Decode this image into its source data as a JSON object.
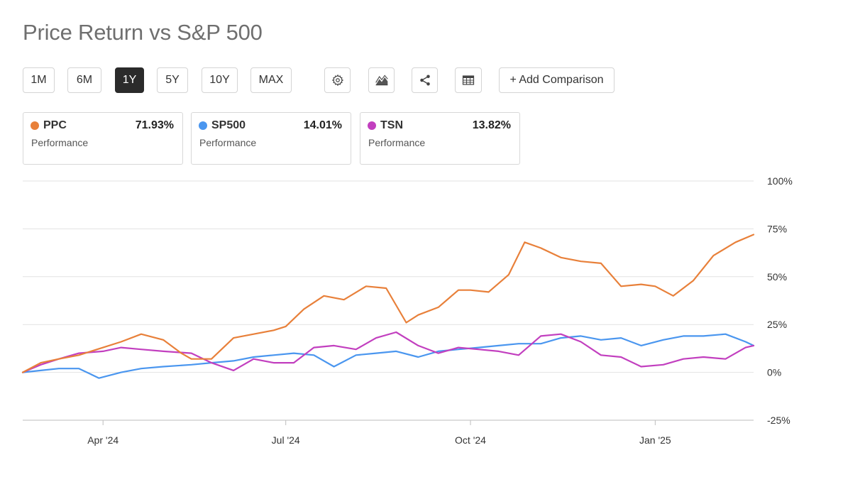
{
  "title": "Price Return vs S&P 500",
  "ranges": [
    "1M",
    "6M",
    "1Y",
    "5Y",
    "10Y",
    "MAX"
  ],
  "active_range": "1Y",
  "tools": {
    "settings_icon": "gear-icon",
    "chart_type_icon": "mountain-chart-icon",
    "share_icon": "share-icon",
    "table_icon": "table-icon",
    "add_comparison_label": "+ Add Comparison"
  },
  "cards": [
    {
      "ticker": "PPC",
      "value": "71.93%",
      "sub": "Performance",
      "color": "#e8803a"
    },
    {
      "ticker": "SP500",
      "value": "14.01%",
      "sub": "Performance",
      "color": "#4a96ef"
    },
    {
      "ticker": "TSN",
      "value": "13.82%",
      "sub": "Performance",
      "color": "#c23fbf"
    }
  ],
  "chart_data": {
    "type": "line",
    "y_ticks": [
      "100%",
      "75%",
      "50%",
      "25%",
      "0%",
      "-25%"
    ],
    "y_tick_values": [
      100,
      75,
      50,
      25,
      0,
      -25
    ],
    "ylim": [
      -25,
      100
    ],
    "x_ticks": [
      "Apr '24",
      "Jul '24",
      "Oct '24",
      "Jan '25"
    ],
    "x_tick_dates": [
      "2024-04-01",
      "2024-07-01",
      "2024-10-01",
      "2025-01-01"
    ],
    "xlim": [
      "2024-02-21",
      "2025-02-19"
    ],
    "grid": true,
    "series": [
      {
        "name": "PPC",
        "color": "#e8803a",
        "x": [
          "2024-02-21",
          "2024-03-01",
          "2024-03-10",
          "2024-03-20",
          "2024-04-01",
          "2024-04-10",
          "2024-04-20",
          "2024-05-01",
          "2024-05-10",
          "2024-05-15",
          "2024-05-25",
          "2024-06-05",
          "2024-06-15",
          "2024-06-25",
          "2024-07-01",
          "2024-07-10",
          "2024-07-20",
          "2024-07-30",
          "2024-08-10",
          "2024-08-20",
          "2024-08-30",
          "2024-09-05",
          "2024-09-15",
          "2024-09-25",
          "2024-10-01",
          "2024-10-10",
          "2024-10-20",
          "2024-10-28",
          "2024-11-05",
          "2024-11-15",
          "2024-11-25",
          "2024-12-05",
          "2024-12-15",
          "2024-12-25",
          "2025-01-01",
          "2025-01-10",
          "2025-01-20",
          "2025-01-30",
          "2025-02-10",
          "2025-02-19"
        ],
        "y": [
          0,
          5,
          7,
          9,
          13,
          16,
          20,
          17,
          10,
          7,
          7,
          18,
          20,
          22,
          24,
          33,
          40,
          38,
          45,
          44,
          26,
          30,
          34,
          43,
          43,
          42,
          51,
          68,
          65,
          60,
          58,
          57,
          45,
          46,
          45,
          40,
          48,
          61,
          68,
          72
        ]
      },
      {
        "name": "SP500",
        "color": "#4a96ef",
        "x": [
          "2024-02-21",
          "2024-03-01",
          "2024-03-10",
          "2024-03-20",
          "2024-03-30",
          "2024-04-10",
          "2024-04-20",
          "2024-05-01",
          "2024-05-15",
          "2024-05-25",
          "2024-06-05",
          "2024-06-15",
          "2024-06-25",
          "2024-07-05",
          "2024-07-15",
          "2024-07-25",
          "2024-08-05",
          "2024-08-15",
          "2024-08-25",
          "2024-09-05",
          "2024-09-15",
          "2024-09-25",
          "2024-10-05",
          "2024-10-15",
          "2024-10-25",
          "2024-11-05",
          "2024-11-15",
          "2024-11-25",
          "2024-12-05",
          "2024-12-15",
          "2024-12-25",
          "2025-01-05",
          "2025-01-15",
          "2025-01-25",
          "2025-02-05",
          "2025-02-15",
          "2025-02-19"
        ],
        "y": [
          0,
          1,
          2,
          2,
          -3,
          0,
          2,
          3,
          4,
          5,
          6,
          8,
          9,
          10,
          9,
          3,
          9,
          10,
          11,
          8,
          11,
          12,
          13,
          14,
          15,
          15,
          18,
          19,
          17,
          18,
          14,
          17,
          19,
          19,
          20,
          16,
          14
        ]
      },
      {
        "name": "TSN",
        "color": "#c23fbf",
        "x": [
          "2024-02-21",
          "2024-03-01",
          "2024-03-10",
          "2024-03-20",
          "2024-04-01",
          "2024-04-10",
          "2024-04-20",
          "2024-05-01",
          "2024-05-15",
          "2024-05-25",
          "2024-06-05",
          "2024-06-15",
          "2024-06-25",
          "2024-07-05",
          "2024-07-15",
          "2024-07-25",
          "2024-08-05",
          "2024-08-15",
          "2024-08-25",
          "2024-09-05",
          "2024-09-15",
          "2024-09-25",
          "2024-10-05",
          "2024-10-15",
          "2024-10-25",
          "2024-11-05",
          "2024-11-15",
          "2024-11-25",
          "2024-12-05",
          "2024-12-15",
          "2024-12-25",
          "2025-01-05",
          "2025-01-15",
          "2025-01-25",
          "2025-02-05",
          "2025-02-15",
          "2025-02-19"
        ],
        "y": [
          0,
          4,
          7,
          10,
          11,
          13,
          12,
          11,
          10,
          5,
          1,
          7,
          5,
          5,
          13,
          14,
          12,
          18,
          21,
          14,
          10,
          13,
          12,
          11,
          9,
          19,
          20,
          16,
          9,
          8,
          3,
          4,
          7,
          8,
          7,
          13,
          14
        ]
      }
    ]
  }
}
